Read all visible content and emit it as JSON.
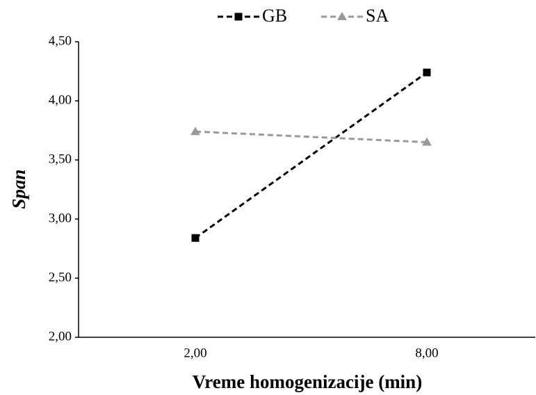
{
  "chart_data": {
    "type": "line",
    "x_label": "Vreme homogenizacije (min)",
    "y_label": "Span",
    "categories": [
      "2,00",
      "8,00"
    ],
    "series": [
      {
        "name": "GB",
        "color": "#000000",
        "marker": "square",
        "values": [
          2.84,
          4.24
        ]
      },
      {
        "name": "SA",
        "color": "#999999",
        "marker": "triangle",
        "values": [
          3.74,
          3.65
        ]
      }
    ],
    "ylim": [
      2.0,
      4.5
    ],
    "yticks": [
      {
        "value": 2.0,
        "label": "2,00"
      },
      {
        "value": 2.5,
        "label": "2,50"
      },
      {
        "value": 3.0,
        "label": "3,00"
      },
      {
        "value": 3.5,
        "label": "3,50"
      },
      {
        "value": 4.0,
        "label": "4,00"
      },
      {
        "value": 4.5,
        "label": "4,50"
      }
    ],
    "grid": false,
    "legend": "top"
  }
}
